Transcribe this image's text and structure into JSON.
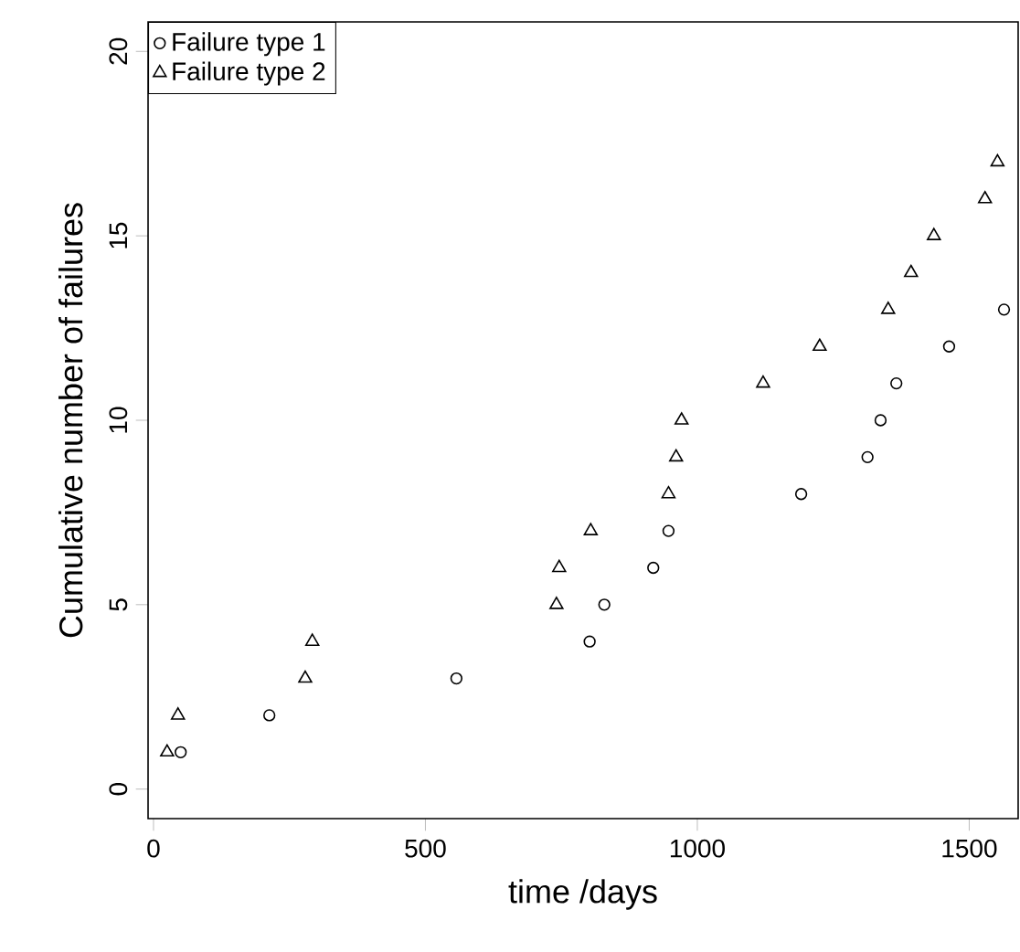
{
  "chart_data": {
    "type": "scatter",
    "xlabel": "time /days",
    "ylabel": "Cumulative number of failures",
    "xlim": [
      -10,
      1590
    ],
    "ylim": [
      -0.8,
      20.8
    ],
    "xticks": [
      0,
      500,
      1000,
      1500
    ],
    "yticks": [
      0,
      5,
      10,
      15,
      20
    ],
    "legend": "top left",
    "grid": false,
    "series": [
      {
        "name": "Failure type 1",
        "color": "#000000",
        "marker": "circle",
        "x": [
          50,
          213,
          557,
          802,
          829,
          919,
          947,
          1191,
          1313,
          1337,
          1366,
          1463,
          1564
        ],
        "values": [
          1,
          2,
          3,
          4,
          5,
          6,
          7,
          8,
          9,
          10,
          11,
          12,
          13
        ]
      },
      {
        "name": "Failure type 2",
        "color": "#000000",
        "marker": "triangle",
        "x": [
          25,
          45,
          279,
          292,
          741,
          746,
          804,
          947,
          961,
          971,
          1121,
          1225,
          1351,
          1393,
          1435,
          1529,
          1552
        ],
        "values": [
          1,
          2,
          3,
          4,
          5,
          6,
          7,
          8,
          9,
          10,
          11,
          12,
          13,
          14,
          15,
          16,
          17
        ]
      }
    ]
  }
}
